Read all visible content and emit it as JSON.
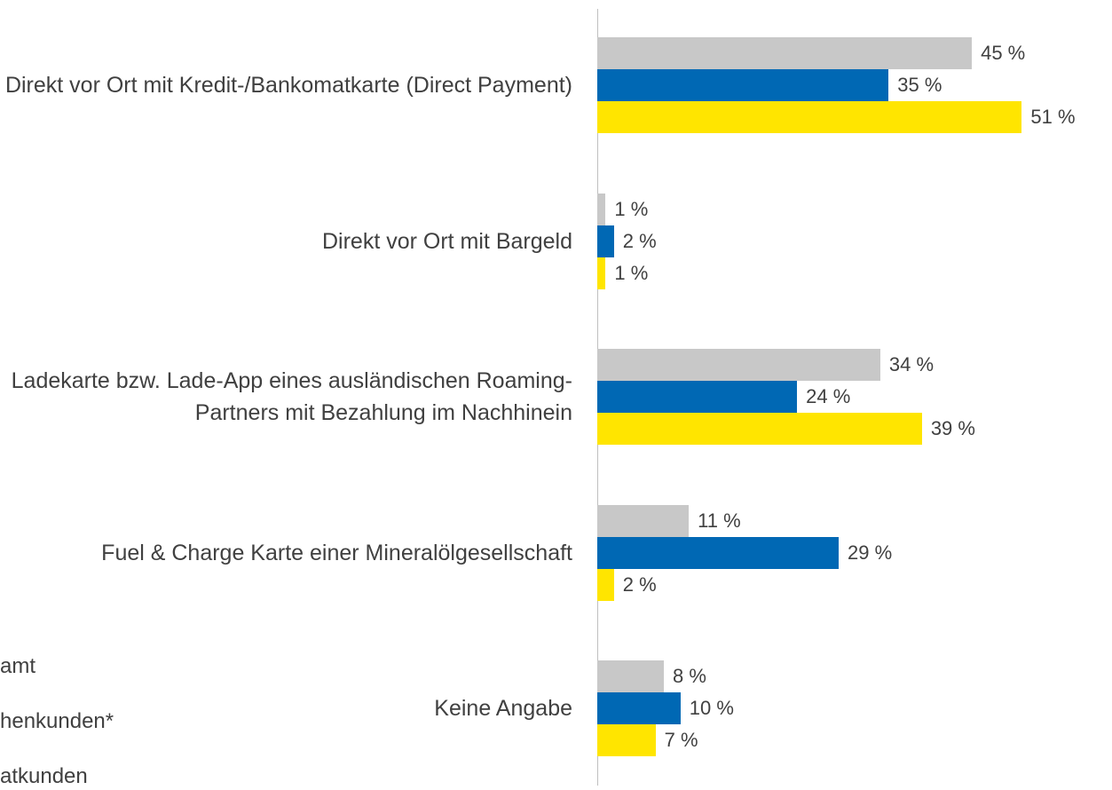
{
  "chart_data": {
    "type": "bar",
    "orientation": "horizontal",
    "categories": [
      "Direkt vor Ort mit Kredit-/Bankomatkarte (Direct Payment)",
      "Direkt vor Ort mit Bargeld",
      "Ladekarte bzw. Lade-App eines ausländischen Roaming-Partners mit Bezahlung im Nachhinein",
      "Fuel & Charge Karte einer Mineralölgesellschaft",
      "Keine Angabe"
    ],
    "series": [
      {
        "name": "amt",
        "color": "#c8c8c8",
        "values": [
          45,
          1,
          34,
          11,
          8
        ],
        "value_labels": [
          "45 %",
          "1 %",
          "34 %",
          "11 %",
          "8 %"
        ]
      },
      {
        "name": "henkunden*",
        "color": "#0068b4",
        "values": [
          35,
          2,
          24,
          29,
          10
        ],
        "value_labels": [
          "35 %",
          "2 %",
          "24 %",
          "29 %",
          "10 %"
        ]
      },
      {
        "name": "atkunden",
        "color": "#ffe500",
        "values": [
          51,
          1,
          39,
          2,
          7
        ],
        "value_labels": [
          "51 %",
          "1 %",
          "39 %",
          "2 %",
          "7 %"
        ]
      }
    ]
  }
}
